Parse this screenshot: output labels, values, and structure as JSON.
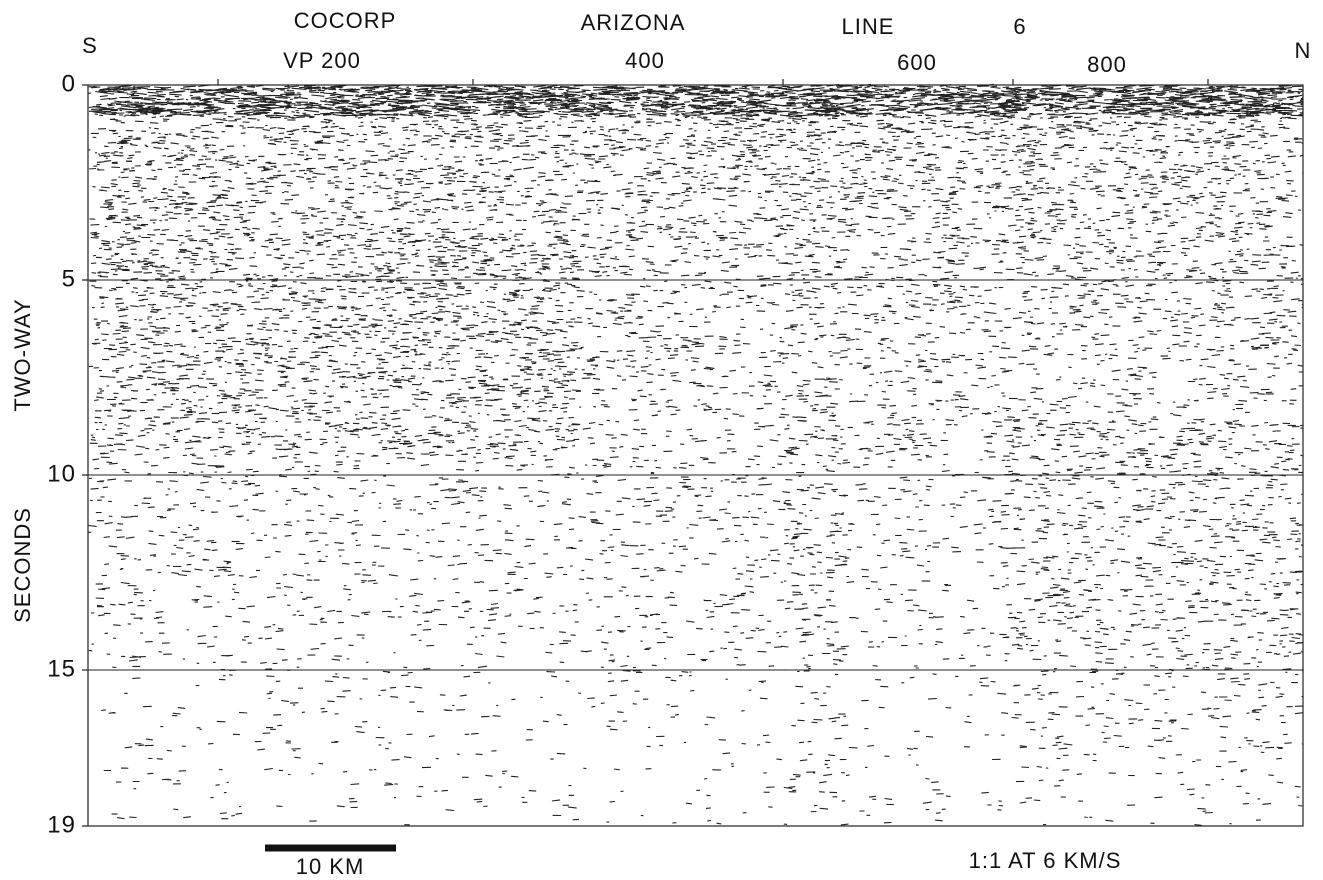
{
  "header": {
    "title_parts": [
      "COCORP",
      "ARIZONA",
      "LINE",
      "6"
    ],
    "left_end": "S",
    "right_end": "N",
    "vp_labels": [
      "VP 200",
      "400",
      "600",
      "800"
    ]
  },
  "y_axis": {
    "labels": [
      "TWO-WAY",
      "SECONDS"
    ],
    "ticks": [
      0,
      5,
      10,
      15,
      19
    ]
  },
  "footer": {
    "scale_bar": "10 KM",
    "scale_note": "1:1 AT 6 KM/S"
  }
}
